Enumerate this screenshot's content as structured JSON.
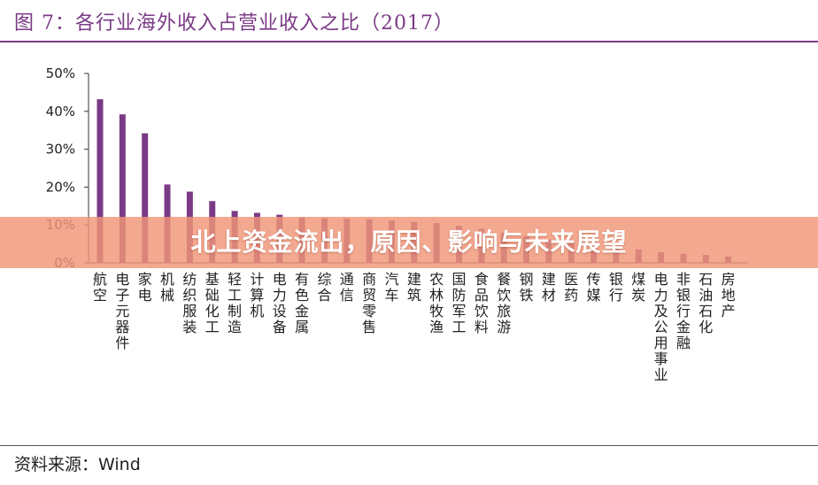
{
  "figure": {
    "title": "图 7：各行业海外收入占营业收入之比（2017）",
    "source": "资料来源：Wind"
  },
  "banner": {
    "text": "北上资金流出，原因、影响与未来展望"
  },
  "colors": {
    "title": "#7b3a86",
    "bar": "#7b3a86",
    "banner": "#f0967a"
  },
  "chart_data": {
    "type": "bar",
    "title": "各行业海外收入占营业收入之比（2017）",
    "xlabel": "",
    "ylabel": "",
    "ylim": [
      0,
      50
    ],
    "yticks": [
      "0%",
      "10%",
      "20%",
      "30%",
      "40%",
      "50%"
    ],
    "grid": false,
    "categories": [
      "航空",
      "电子元器件",
      "家电",
      "机械",
      "纺织服装",
      "基础化工",
      "轻工制造",
      "计算机",
      "电力设备",
      "有色金属",
      "综合",
      "通信",
      "商贸零售",
      "汽车",
      "建筑",
      "农林牧渔",
      "国防军工",
      "食品饮料",
      "餐饮旅游",
      "钢铁",
      "建材",
      "医药",
      "传媒",
      "银行",
      "煤炭",
      "电力及公用事业",
      "非银行金融",
      "石油石化",
      "房地产"
    ],
    "values": [
      43.2,
      39.2,
      34.2,
      20.7,
      18.8,
      16.3,
      13.7,
      13.2,
      12.7,
      12.0,
      11.8,
      11.7,
      11.5,
      11.2,
      10.8,
      10.5,
      9.8,
      9.0,
      8.0,
      7.0,
      6.2,
      5.5,
      4.8,
      4.0,
      3.5,
      2.8,
      2.4,
      2.1,
      1.7
    ],
    "colors": [
      "#7b3a86"
    ]
  }
}
